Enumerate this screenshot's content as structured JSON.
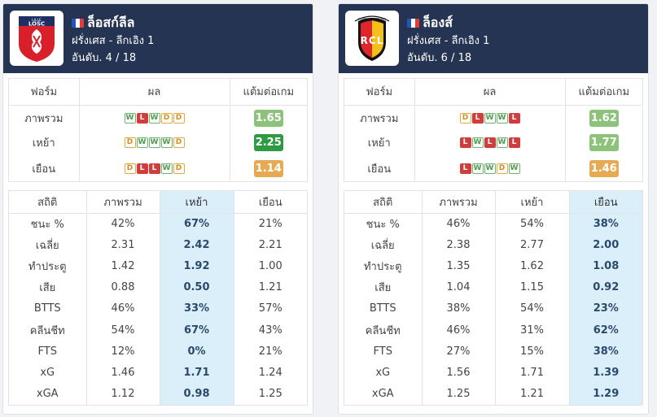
{
  "labels": {
    "form_header": "ฟอร์ม",
    "result_header": "ผล",
    "ppg_header": "แต้มต่อเกม",
    "overall": "ภาพรวม",
    "home": "เหย้า",
    "away": "เยือน",
    "stats_header": "สถิติ",
    "stat_names": [
      "ชนะ %",
      "เฉลี่ย",
      "ทำประตู",
      "เสีย",
      "BTTS",
      "คลีนชีท",
      "FTS",
      "xG",
      "xGA"
    ]
  },
  "flag_colors": [
    "#2455b8",
    "#ffffff",
    "#e33a3a"
  ],
  "teams": [
    {
      "name": "ล็อสก์ลีล",
      "league": "ฝรั่งเศส - ลีกเอิง 1",
      "rank": "อันดับ. 4 / 18",
      "logo_icon": "losc-lille-crest-icon",
      "logo_text": {
        "top": "LILLE",
        "main": "LOSC"
      },
      "form": {
        "overall": {
          "results": [
            "W",
            "L",
            "W",
            "D",
            "D"
          ],
          "ppg": "1.65",
          "ppg_color": "g1"
        },
        "home": {
          "results": [
            "D",
            "W",
            "W",
            "W",
            "D"
          ],
          "ppg": "2.25",
          "ppg_color": "g2"
        },
        "away": {
          "results": [
            "D",
            "L",
            "L",
            "W",
            "D"
          ],
          "ppg": "1.14",
          "ppg_color": "or"
        }
      },
      "highlight": "home",
      "stats": {
        "overall": [
          "42%",
          "2.31",
          "1.42",
          "0.88",
          "46%",
          "54%",
          "12%",
          "1.46",
          "1.12"
        ],
        "home": [
          "67%",
          "2.42",
          "1.92",
          "0.50",
          "33%",
          "67%",
          "0%",
          "1.71",
          "0.98"
        ],
        "away": [
          "21%",
          "2.21",
          "1.00",
          "1.21",
          "57%",
          "43%",
          "21%",
          "1.24",
          "1.25"
        ]
      }
    },
    {
      "name": "ล็องส์",
      "league": "ฝรั่งเศส - ลีกเอิง 1",
      "rank": "อันดับ. 6 / 18",
      "logo_icon": "rc-lens-crest-icon",
      "logo_text": {
        "top": "RACING CLUB DE LENS",
        "main": "RCL"
      },
      "form": {
        "overall": {
          "results": [
            "D",
            "L",
            "W",
            "W",
            "L"
          ],
          "ppg": "1.62",
          "ppg_color": "g1"
        },
        "home": {
          "results": [
            "L",
            "W",
            "L",
            "W",
            "L"
          ],
          "ppg": "1.77",
          "ppg_color": "g1"
        },
        "away": {
          "results": [
            "L",
            "W",
            "W",
            "D",
            "W"
          ],
          "ppg": "1.46",
          "ppg_color": "or"
        }
      },
      "highlight": "away",
      "stats": {
        "overall": [
          "46%",
          "2.38",
          "1.35",
          "1.04",
          "38%",
          "46%",
          "27%",
          "1.56",
          "1.25"
        ],
        "home": [
          "54%",
          "2.77",
          "1.62",
          "1.15",
          "54%",
          "31%",
          "15%",
          "1.71",
          "1.21"
        ],
        "away": [
          "38%",
          "2.00",
          "1.08",
          "0.92",
          "23%",
          "62%",
          "38%",
          "1.39",
          "1.29"
        ]
      }
    }
  ]
}
